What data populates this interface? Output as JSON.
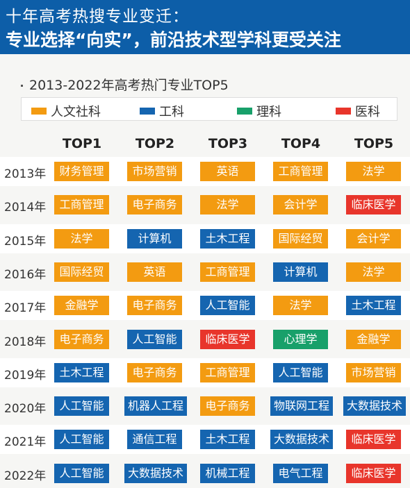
{
  "header": {
    "title_line1": "十年高考热搜专业变迁：",
    "title_line2": "专业选择“向实”，前沿技术型学科更受关注"
  },
  "subtitle": "2013-2022年高考热门专业TOP5",
  "legend": [
    {
      "label": "人文社科",
      "color": "#f39b11"
    },
    {
      "label": "工科",
      "color": "#1565b0"
    },
    {
      "label": "理科",
      "color": "#18a06a"
    },
    {
      "label": "医科",
      "color": "#e8352b"
    }
  ],
  "columns": [
    "TOP1",
    "TOP2",
    "TOP3",
    "TOP4",
    "TOP5"
  ],
  "rows": [
    {
      "year": "2013年",
      "items": [
        [
          "财务管理",
          "r"
        ],
        [
          "市场营销",
          "r"
        ],
        [
          "英语",
          "r"
        ],
        [
          "工商管理",
          "r"
        ],
        [
          "法学",
          "r"
        ]
      ]
    },
    {
      "year": "2014年",
      "items": [
        [
          "工商管理",
          "r"
        ],
        [
          "电子商务",
          "r"
        ],
        [
          "法学",
          "r"
        ],
        [
          "会计学",
          "r"
        ],
        [
          "临床医学",
          "m"
        ]
      ]
    },
    {
      "year": "2015年",
      "items": [
        [
          "法学",
          "r"
        ],
        [
          "计算机",
          "e"
        ],
        [
          "土木工程",
          "e"
        ],
        [
          "国际经贸",
          "r"
        ],
        [
          "会计学",
          "r"
        ]
      ]
    },
    {
      "year": "2016年",
      "items": [
        [
          "国际经贸",
          "r"
        ],
        [
          "英语",
          "r"
        ],
        [
          "工商管理",
          "r"
        ],
        [
          "计算机",
          "e"
        ],
        [
          "法学",
          "r"
        ]
      ]
    },
    {
      "year": "2017年",
      "items": [
        [
          "金融学",
          "r"
        ],
        [
          "电子商务",
          "r"
        ],
        [
          "人工智能",
          "e"
        ],
        [
          "法学",
          "r"
        ],
        [
          "土木工程",
          "e"
        ]
      ]
    },
    {
      "year": "2018年",
      "items": [
        [
          "电子商务",
          "r"
        ],
        [
          "人工智能",
          "e"
        ],
        [
          "临床医学",
          "m"
        ],
        [
          "心理学",
          "s"
        ],
        [
          "金融学",
          "r"
        ]
      ]
    },
    {
      "year": "2019年",
      "items": [
        [
          "土木工程",
          "e"
        ],
        [
          "电子商务",
          "r"
        ],
        [
          "工商管理",
          "r"
        ],
        [
          "人工智能",
          "e"
        ],
        [
          "市场营销",
          "r"
        ]
      ]
    },
    {
      "year": "2020年",
      "items": [
        [
          "人工智能",
          "e"
        ],
        [
          "机器人工程",
          "e"
        ],
        [
          "电子商务",
          "r"
        ],
        [
          "物联网工程",
          "e"
        ],
        [
          "大数据技术",
          "e"
        ]
      ]
    },
    {
      "year": "2021年",
      "items": [
        [
          "人工智能",
          "e"
        ],
        [
          "通信工程",
          "e"
        ],
        [
          "土木工程",
          "e"
        ],
        [
          "大数据技术",
          "e"
        ],
        [
          "临床医学",
          "m"
        ]
      ]
    },
    {
      "year": "2022年",
      "items": [
        [
          "人工智能",
          "e"
        ],
        [
          "大数据技术",
          "e"
        ],
        [
          "机械工程",
          "e"
        ],
        [
          "电气工程",
          "e"
        ],
        [
          "临床医学",
          "m"
        ]
      ]
    }
  ],
  "category_colors": {
    "r": "#f39b11",
    "e": "#1565b0",
    "s": "#18a06a",
    "m": "#e8352b"
  }
}
